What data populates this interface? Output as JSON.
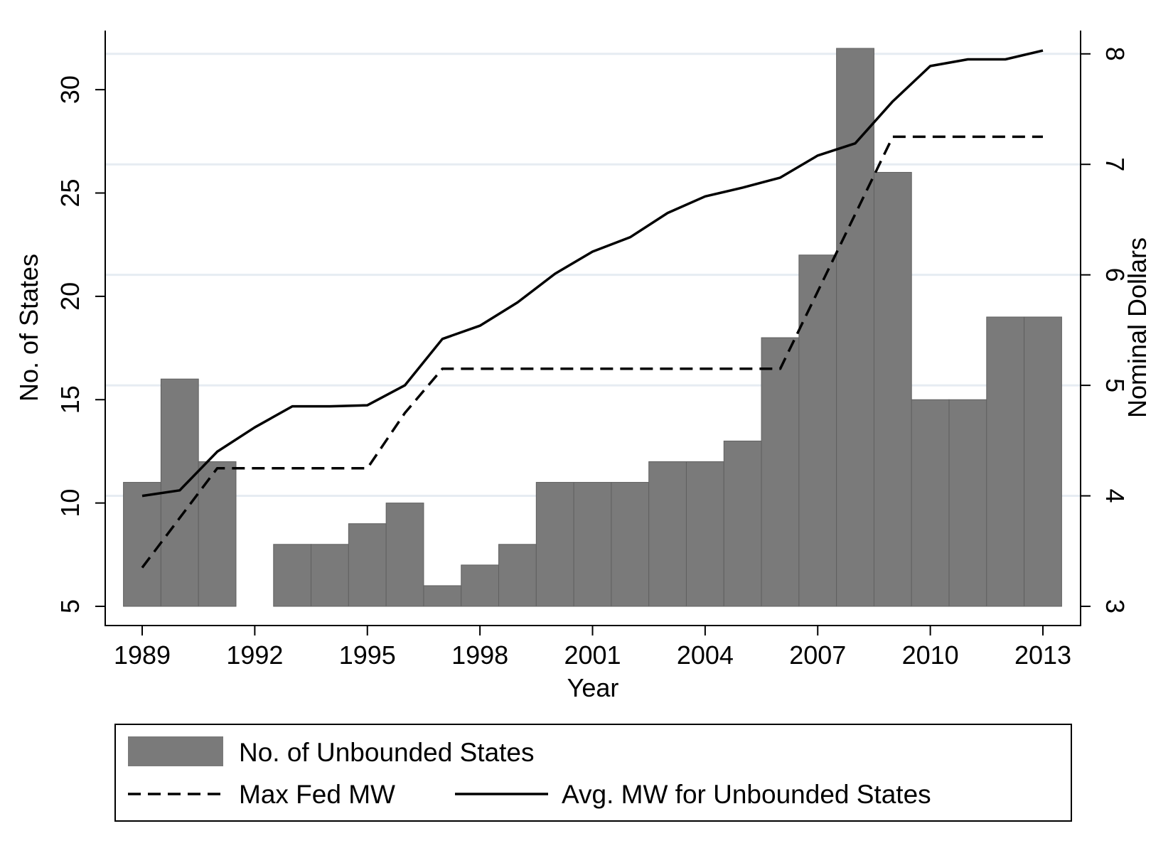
{
  "chart_data": {
    "type": "bar",
    "x": [
      1989,
      1990,
      1991,
      1992,
      1993,
      1994,
      1995,
      1996,
      1997,
      1998,
      1999,
      2000,
      2001,
      2002,
      2003,
      2004,
      2005,
      2006,
      2007,
      2008,
      2009,
      2010,
      2011,
      2012,
      2013
    ],
    "xlabel": "Year",
    "xticks": [
      "1989",
      "1992",
      "1995",
      "1998",
      "2001",
      "2004",
      "2007",
      "2010",
      "2013"
    ],
    "xlim": [
      1989,
      2013
    ],
    "y_left": {
      "label": "No. of States",
      "lim": [
        5,
        32
      ],
      "ticks": [
        "5",
        "10",
        "15",
        "20",
        "25",
        "30"
      ]
    },
    "y_right": {
      "label": "Nominal Dollars",
      "lim": [
        3,
        8.05
      ],
      "ticks": [
        "3",
        "4",
        "5",
        "6",
        "7",
        "8"
      ]
    },
    "grid": "horizontal at right-axis ticks",
    "series": [
      {
        "name": "No. of Unbounded States",
        "kind": "bar",
        "axis": "left",
        "color": "#7a7a7a",
        "values": [
          11,
          16,
          12,
          null,
          8,
          8,
          9,
          10,
          6,
          7,
          8,
          11,
          11,
          11,
          12,
          12,
          13,
          18,
          22,
          32,
          26,
          15,
          15,
          19,
          19
        ]
      },
      {
        "name": "Max Fed MW",
        "kind": "line",
        "style": "dashed",
        "axis": "right",
        "color": "#000000",
        "values": [
          3.35,
          3.8,
          4.25,
          4.25,
          4.25,
          4.25,
          4.25,
          4.75,
          5.15,
          5.15,
          5.15,
          5.15,
          5.15,
          5.15,
          5.15,
          5.15,
          5.15,
          5.15,
          5.85,
          6.55,
          7.25,
          7.25,
          7.25,
          7.25,
          7.25
        ]
      },
      {
        "name": "Avg. MW for Unbounded States",
        "kind": "line",
        "style": "solid",
        "axis": "right",
        "color": "#000000",
        "values": [
          4.0,
          4.05,
          4.4,
          4.62,
          4.81,
          4.81,
          4.82,
          5.0,
          5.42,
          5.54,
          5.75,
          6.01,
          6.21,
          6.34,
          6.56,
          6.71,
          6.79,
          6.88,
          7.08,
          7.19,
          7.57,
          7.89,
          7.95,
          7.95,
          8.03
        ]
      }
    ],
    "legend": {
      "position": "bottom",
      "entries": [
        "No. of Unbounded States",
        "Max Fed MW",
        "Avg. MW for Unbounded States"
      ]
    }
  }
}
